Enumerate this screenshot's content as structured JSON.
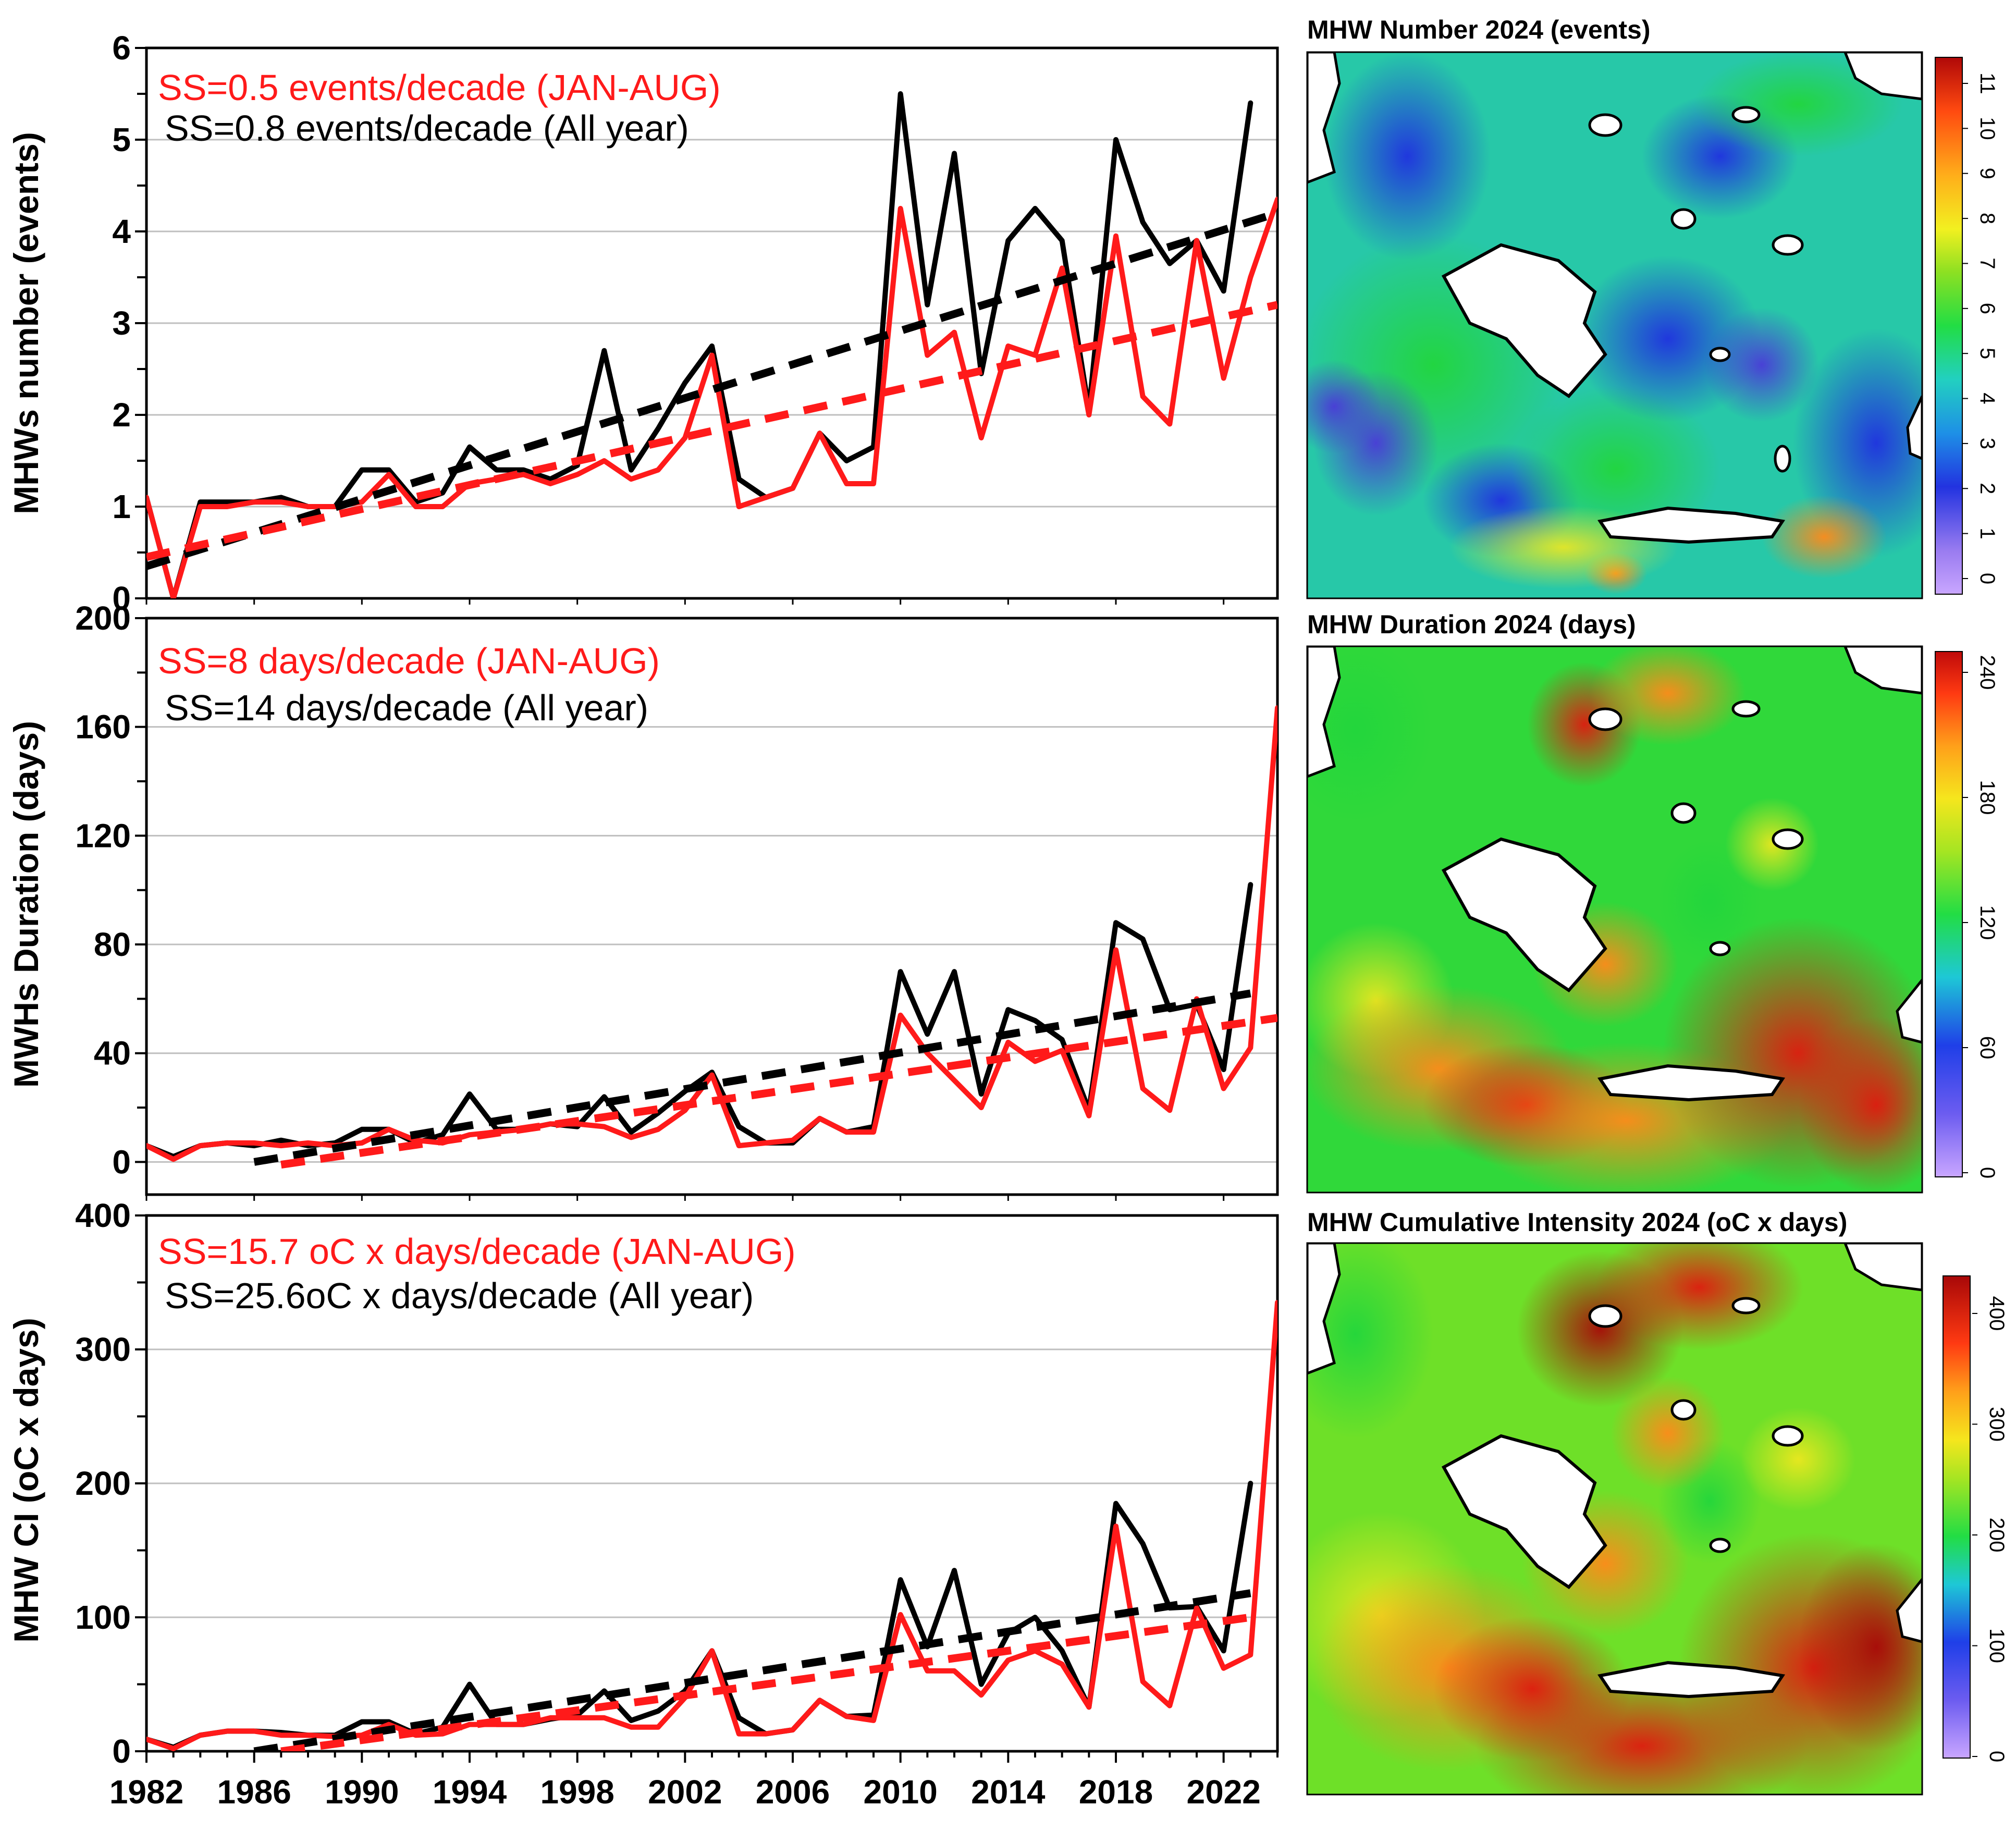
{
  "colors": {
    "all_year": "#000000",
    "jan_aug": "#ff1a1a",
    "grid": "#bfbfbf"
  },
  "chart_data": [
    {
      "type": "line",
      "ylabel": "MHWs number  (events)",
      "ylim": [
        0,
        6
      ],
      "yticks": [
        0,
        1,
        2,
        3,
        4,
        5,
        6
      ],
      "xlim": [
        1982,
        2024
      ],
      "annotations": {
        "jan_aug": "SS=0.5 events/decade (JAN-AUG)",
        "all_year": "SS=0.8 events/decade (All year)"
      },
      "series": [
        {
          "name": "All year",
          "x": [
            1982,
            1983,
            1984,
            1985,
            1986,
            1987,
            1988,
            1989,
            1990,
            1991,
            1992,
            1993,
            1994,
            1995,
            1996,
            1997,
            1998,
            1999,
            2000,
            2001,
            2002,
            2003,
            2004,
            2005,
            2006,
            2007,
            2008,
            2009,
            2010,
            2011,
            2012,
            2013,
            2014,
            2015,
            2016,
            2017,
            2018,
            2019,
            2020,
            2021,
            2022,
            2023
          ],
          "values": [
            1.1,
            0.0,
            1.05,
            1.05,
            1.05,
            1.1,
            1.0,
            1.0,
            1.4,
            1.4,
            1.05,
            1.15,
            1.65,
            1.4,
            1.4,
            1.3,
            1.45,
            2.7,
            1.4,
            1.85,
            2.35,
            2.75,
            1.3,
            1.1,
            1.2,
            1.8,
            1.5,
            1.65,
            5.5,
            3.2,
            4.85,
            2.45,
            3.9,
            4.25,
            3.9,
            2.05,
            5.0,
            4.1,
            3.65,
            3.9,
            3.35,
            5.4
          ]
        },
        {
          "name": "JAN-AUG",
          "x": [
            1982,
            1983,
            1984,
            1985,
            1986,
            1987,
            1988,
            1989,
            1990,
            1991,
            1992,
            1993,
            1994,
            1995,
            1996,
            1997,
            1998,
            1999,
            2000,
            2001,
            2002,
            2003,
            2004,
            2005,
            2006,
            2007,
            2008,
            2009,
            2010,
            2011,
            2012,
            2013,
            2014,
            2015,
            2016,
            2017,
            2018,
            2019,
            2020,
            2021,
            2022,
            2023,
            2024
          ],
          "values": [
            1.1,
            0.0,
            1.0,
            1.0,
            1.05,
            1.05,
            1.0,
            1.0,
            1.05,
            1.35,
            1.0,
            1.0,
            1.25,
            1.3,
            1.35,
            1.25,
            1.35,
            1.5,
            1.3,
            1.4,
            1.75,
            2.65,
            1.0,
            1.1,
            1.2,
            1.8,
            1.25,
            1.25,
            4.25,
            2.65,
            2.9,
            1.75,
            2.75,
            2.65,
            3.6,
            2.0,
            3.95,
            2.2,
            1.9,
            3.9,
            2.4,
            3.5,
            4.35
          ]
        },
        {
          "name": "All year trend",
          "x": [
            1982,
            2024
          ],
          "values": [
            0.35,
            4.2
          ],
          "style": "dashed"
        },
        {
          "name": "JAN-AUG trend",
          "x": [
            1982,
            2024
          ],
          "values": [
            0.45,
            3.2
          ],
          "style": "dashed"
        }
      ]
    },
    {
      "type": "line",
      "ylabel": "MWHs Duration (days)",
      "ylim": [
        -12,
        200
      ],
      "yticks": [
        0,
        40,
        80,
        120,
        160,
        200
      ],
      "xlim": [
        1982,
        2024
      ],
      "annotations": {
        "jan_aug": "SS=8 days/decade (JAN-AUG)",
        "all_year": "SS=14 days/decade (All year)"
      },
      "series": [
        {
          "name": "All year",
          "x": [
            1982,
            1983,
            1984,
            1985,
            1986,
            1987,
            1988,
            1989,
            1990,
            1991,
            1992,
            1993,
            1994,
            1995,
            1996,
            1997,
            1998,
            1999,
            2000,
            2001,
            2002,
            2003,
            2004,
            2005,
            2006,
            2007,
            2008,
            2009,
            2010,
            2011,
            2012,
            2013,
            2014,
            2015,
            2016,
            2017,
            2018,
            2019,
            2020,
            2021,
            2022,
            2023
          ],
          "values": [
            6,
            2,
            6,
            7,
            6,
            8,
            6,
            7,
            12,
            12,
            7,
            10,
            25,
            12,
            12,
            14,
            13,
            24,
            11,
            18,
            26,
            33,
            13,
            7,
            7,
            16,
            11,
            13,
            70,
            47,
            70,
            25,
            56,
            52,
            45,
            19,
            88,
            82,
            56,
            58,
            34,
            102
          ]
        },
        {
          "name": "JAN-AUG",
          "x": [
            1982,
            1983,
            1984,
            1985,
            1986,
            1987,
            1988,
            1989,
            1990,
            1991,
            1992,
            1993,
            1994,
            1995,
            1996,
            1997,
            1998,
            1999,
            2000,
            2001,
            2002,
            2003,
            2004,
            2005,
            2006,
            2007,
            2008,
            2009,
            2010,
            2011,
            2012,
            2013,
            2014,
            2015,
            2016,
            2017,
            2018,
            2019,
            2020,
            2021,
            2022,
            2023,
            2024
          ],
          "values": [
            6,
            1,
            6,
            7,
            7,
            6,
            7,
            6,
            7,
            12,
            8,
            7,
            10,
            11,
            12,
            14,
            14,
            13,
            9,
            12,
            19,
            32,
            6,
            7,
            8,
            16,
            11,
            11,
            54,
            40,
            30,
            20,
            44,
            37,
            41,
            17,
            78,
            27,
            19,
            60,
            27,
            42,
            167
          ]
        },
        {
          "name": "All year trend",
          "x": [
            1986,
            2023
          ],
          "values": [
            0,
            62
          ],
          "style": "dashed"
        },
        {
          "name": "JAN-AUG trend",
          "x": [
            1987,
            2024
          ],
          "values": [
            -1,
            53
          ],
          "style": "dashed"
        }
      ]
    },
    {
      "type": "line",
      "ylabel": "MHW CI (oC x days)",
      "ylim": [
        0,
        400
      ],
      "yticks": [
        0,
        100,
        200,
        300,
        400
      ],
      "xlim": [
        1982,
        2024
      ],
      "xticks": [
        1982,
        1986,
        1990,
        1994,
        1998,
        2002,
        2006,
        2010,
        2014,
        2018,
        2022
      ],
      "annotations": {
        "jan_aug": "SS=15.7 oC x days/decade (JAN-AUG)",
        "all_year": "SS=25.6oC x days/decade (All year)"
      },
      "series": [
        {
          "name": "All year",
          "x": [
            1982,
            1983,
            1984,
            1985,
            1986,
            1987,
            1988,
            1989,
            1990,
            1991,
            1992,
            1993,
            1994,
            1995,
            1996,
            1997,
            1998,
            1999,
            2000,
            2001,
            2002,
            2003,
            2004,
            2005,
            2006,
            2007,
            2008,
            2009,
            2010,
            2011,
            2012,
            2013,
            2014,
            2015,
            2016,
            2017,
            2018,
            2019,
            2020,
            2021,
            2022,
            2023
          ],
          "values": [
            9,
            3,
            12,
            15,
            15,
            14,
            12,
            12,
            22,
            22,
            13,
            18,
            50,
            20,
            20,
            24,
            27,
            45,
            23,
            30,
            45,
            75,
            25,
            13,
            16,
            38,
            26,
            27,
            128,
            78,
            135,
            50,
            88,
            100,
            75,
            33,
            185,
            155,
            107,
            108,
            75,
            200
          ]
        },
        {
          "name": "JAN-AUG",
          "x": [
            1982,
            1983,
            1984,
            1985,
            1986,
            1987,
            1988,
            1989,
            1990,
            1991,
            1992,
            1993,
            1994,
            1995,
            1996,
            1997,
            1998,
            1999,
            2000,
            2001,
            2002,
            2003,
            2004,
            2005,
            2006,
            2007,
            2008,
            2009,
            2010,
            2011,
            2012,
            2013,
            2014,
            2015,
            2016,
            2017,
            2018,
            2019,
            2020,
            2021,
            2022,
            2023,
            2024
          ],
          "values": [
            9,
            2,
            12,
            15,
            15,
            12,
            12,
            11,
            12,
            20,
            12,
            13,
            20,
            20,
            20,
            25,
            25,
            25,
            18,
            18,
            40,
            75,
            13,
            13,
            16,
            38,
            26,
            23,
            102,
            60,
            60,
            42,
            68,
            75,
            65,
            33,
            168,
            52,
            34,
            107,
            62,
            72,
            335
          ]
        },
        {
          "name": "All year trend",
          "x": [
            1986,
            2023
          ],
          "values": [
            0,
            118
          ],
          "style": "dashed"
        },
        {
          "name": "JAN-AUG trend",
          "x": [
            1987,
            2023
          ],
          "values": [
            0,
            100
          ],
          "style": "dashed"
        }
      ]
    },
    {
      "type": "heatmap",
      "title": "MHW Number 2024 (events)",
      "colorbar_ticks": [
        "11",
        "10",
        "9",
        "8",
        "7",
        "6",
        "5",
        "4",
        "3",
        "2",
        "1",
        "0"
      ],
      "range": [
        0,
        11
      ]
    },
    {
      "type": "heatmap",
      "title": "MHW Duration 2024 (days)",
      "colorbar_ticks": [
        "240",
        "180",
        "120",
        "60",
        "0"
      ],
      "range": [
        0,
        240
      ]
    },
    {
      "type": "heatmap",
      "title": "MHW Cumulative Intensity 2024 (oC x days)",
      "colorbar_ticks": [
        "400",
        "300",
        "200",
        "100",
        "0"
      ],
      "range": [
        0,
        400
      ]
    }
  ]
}
